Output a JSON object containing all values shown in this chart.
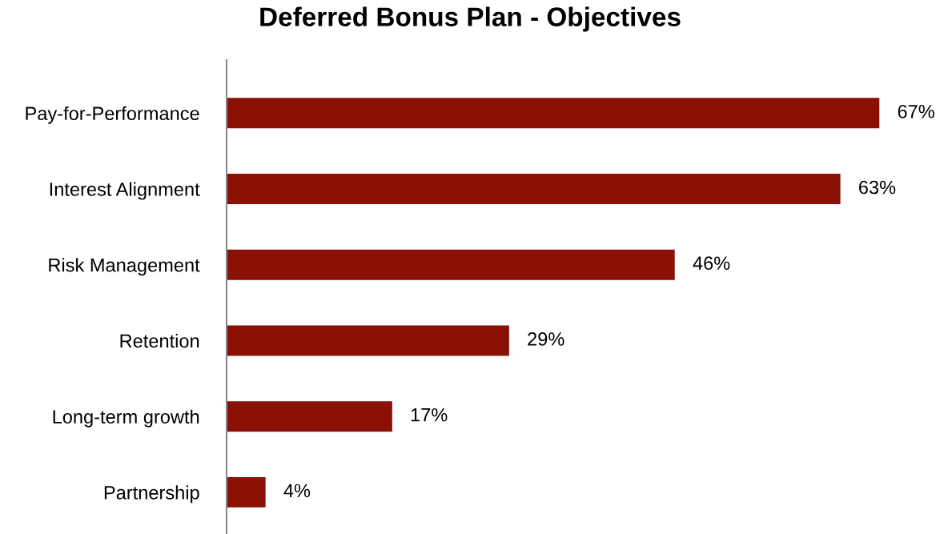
{
  "chart_data": {
    "type": "bar",
    "orientation": "horizontal",
    "title": "Deferred Bonus Plan - Objectives",
    "categories": [
      "Pay-for-Performance",
      "Interest Alignment",
      "Risk Management",
      "Retention",
      "Long-term growth",
      "Partnership"
    ],
    "values": [
      67,
      63,
      46,
      29,
      17,
      4
    ],
    "value_labels": [
      "67%",
      "63%",
      "46%",
      "29%",
      "17%",
      "4%"
    ],
    "color": "#8b1005",
    "grid": false,
    "legend": false
  }
}
